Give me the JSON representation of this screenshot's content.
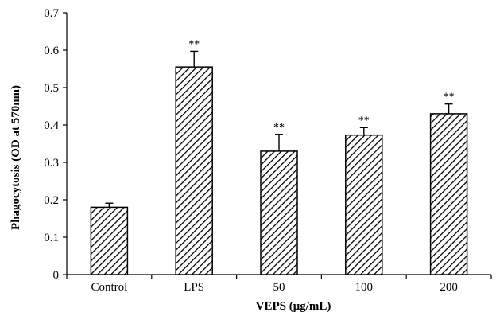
{
  "chart_data": {
    "type": "bar",
    "categories": [
      "Control",
      "LPS",
      "50",
      "100",
      "200"
    ],
    "values": [
      0.18,
      0.555,
      0.33,
      0.373,
      0.43
    ],
    "errors": [
      0.011,
      0.042,
      0.045,
      0.02,
      0.026
    ],
    "significance": [
      "",
      "**",
      "**",
      "**",
      "**"
    ],
    "xlabel": "VEPS (μg/mL)",
    "ylabel": "Phagocytosis (OD at 570nm)",
    "ylim": [
      0,
      0.7
    ],
    "yticks": [
      "0",
      "0.1",
      "0.2",
      "0.3",
      "0.4",
      "0.5",
      "0.6",
      "0.7"
    ],
    "bar_fill": "hatched diagonal",
    "grid": false,
    "legend": "none"
  }
}
